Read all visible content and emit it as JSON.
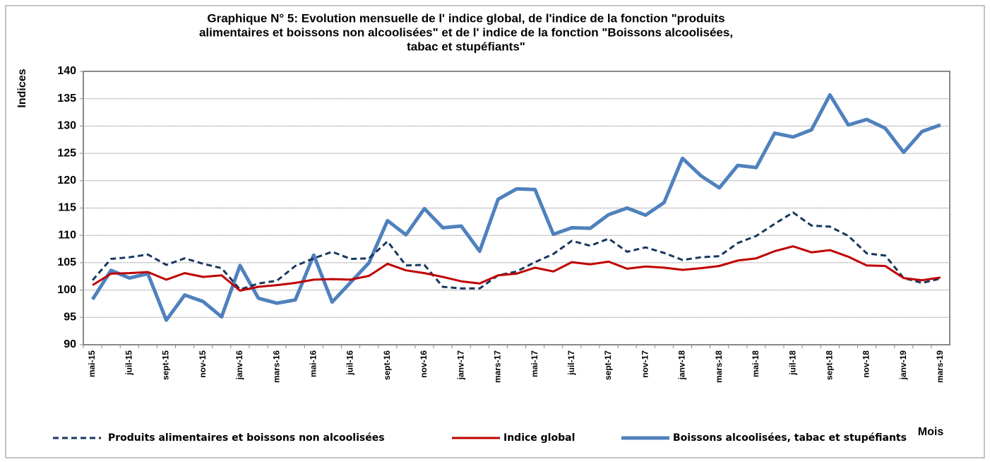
{
  "chart_data": {
    "type": "line",
    "title": [
      "Graphique N° 5: Evolution mensuelle de l' indice global, de l'indice de la fonction \"produits",
      "alimentaires et boissons non alcoolisées\" et de l' indice de la fonction \"Boissons alcoolisées,",
      "tabac et stupéfiants\""
    ],
    "y_label": "Indices",
    "x_label": "Mois",
    "categories": [
      "mai-15",
      null,
      "juil-15",
      null,
      "sept-15",
      null,
      "nov-15",
      null,
      "janv-16",
      null,
      "mars-16",
      null,
      "mai-16",
      null,
      "juil-16",
      null,
      "sept-16",
      null,
      "nov-16",
      null,
      "janv-17",
      null,
      "mars-17",
      null,
      "mai-17",
      null,
      "juil-17",
      null,
      "sept-17",
      null,
      "nov-17",
      null,
      "janv-18",
      null,
      "mars-18",
      null,
      "mai-18",
      null,
      "juil-18",
      null,
      "sept-18",
      null,
      "nov-18",
      null,
      "janv-19",
      null,
      "mars-19"
    ],
    "series": [
      {
        "name": "Produits alimentaires et boissons non alcoolisées",
        "color": "#17375e",
        "dashed": true,
        "values": [
          101.8,
          105.7,
          106.0,
          106.5,
          104.6,
          105.8,
          104.8,
          104.0,
          100.1,
          101.2,
          101.7,
          104.4,
          105.8,
          107.0,
          105.7,
          105.8,
          108.9,
          104.5,
          104.6,
          100.6,
          100.3,
          100.3,
          102.7,
          103.4,
          105.1,
          106.6,
          109.0,
          108.1,
          109.4,
          107.0,
          107.8,
          106.8,
          105.5,
          106.0,
          106.2,
          108.6,
          109.9,
          112.1,
          114.2,
          111.8,
          111.6,
          109.9,
          106.7,
          106.3,
          102.2,
          101.3,
          102.1
        ]
      },
      {
        "name": "Indice global",
        "color": "#c00000",
        "dashed": false,
        "values": [
          100.9,
          103.0,
          103.1,
          103.3,
          101.9,
          103.1,
          102.4,
          102.7,
          99.9,
          100.6,
          100.9,
          101.3,
          101.9,
          102.0,
          101.9,
          102.6,
          104.8,
          103.6,
          103.1,
          102.4,
          101.6,
          101.2,
          102.7,
          103.0,
          104.1,
          103.4,
          105.1,
          104.7,
          105.2,
          103.9,
          104.3,
          104.1,
          103.7,
          104.0,
          104.4,
          105.4,
          105.8,
          107.1,
          108.0,
          106.9,
          107.3,
          106.1,
          104.5,
          104.4,
          102.2,
          101.8,
          102.3
        ]
      },
      {
        "name": "Boissons alcoolisées, tabac et stupéfiants",
        "color": "#4f81bd",
        "dashed": false,
        "values": [
          98.3,
          103.6,
          102.2,
          103.0,
          94.5,
          99.1,
          97.9,
          95.1,
          104.5,
          98.5,
          97.6,
          98.2,
          106.4,
          97.8,
          101.4,
          105.0,
          112.7,
          110.1,
          114.9,
          111.4,
          111.7,
          107.1,
          116.6,
          118.5,
          118.4,
          110.2,
          111.4,
          111.3,
          113.8,
          115.0,
          113.7,
          116.0,
          124.1,
          120.9,
          118.7,
          122.8,
          122.4,
          128.7,
          128.0,
          129.3,
          135.7,
          130.2,
          131.2,
          129.6,
          125.2,
          129.0,
          130.2
        ]
      }
    ],
    "ylim": [
      90,
      140
    ],
    "yticks": [
      90,
      95,
      100,
      105,
      110,
      115,
      120,
      125,
      130,
      135,
      140
    ],
    "grid": true,
    "legend": "bottom"
  }
}
